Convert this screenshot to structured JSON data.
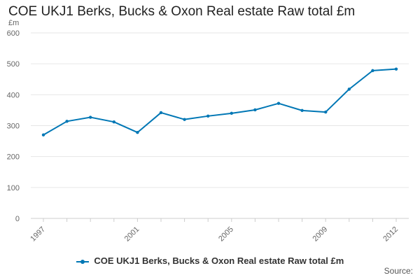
{
  "chart_data": {
    "type": "line",
    "title": "COE UKJ1 Berks, Bucks & Oxon Real estate Raw total £m",
    "ylabel": "£m",
    "xlabel": "",
    "x": [
      1997,
      1998,
      1999,
      2000,
      2001,
      2002,
      2003,
      2004,
      2005,
      2006,
      2007,
      2008,
      2009,
      2010,
      2011,
      2012
    ],
    "x_tick_labels": [
      "1997",
      "2001",
      "2005",
      "2009",
      "2012"
    ],
    "y_tick_labels": [
      "0",
      "100",
      "200",
      "300",
      "400",
      "500",
      "600"
    ],
    "ylim": [
      0,
      600
    ],
    "grid": true,
    "legend_position": "bottom",
    "series": [
      {
        "name": "COE UKJ1 Berks, Bucks & Oxon Real estate Raw total £m",
        "values": [
          270,
          314,
          327,
          312,
          278,
          342,
          320,
          331,
          340,
          351,
          372,
          349,
          344,
          418,
          478,
          483
        ]
      }
    ],
    "colors": {
      "series": "#0077b5",
      "grid": "#e6e6e6",
      "axis": "#cccccc",
      "text": "#666666"
    }
  },
  "credits": {
    "label": "Source:"
  }
}
